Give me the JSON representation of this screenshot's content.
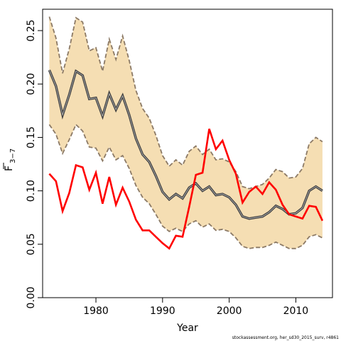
{
  "chart_data": {
    "type": "line",
    "xlabel": "Year",
    "ylabel": "F",
    "ylabel_subscript": "3−7",
    "xlim": [
      1972,
      2015.5
    ],
    "ylim": [
      0,
      0.27
    ],
    "x_ticks": [
      1980,
      1990,
      2000,
      2010
    ],
    "y_ticks": [
      0.0,
      0.05,
      0.1,
      0.15,
      0.2,
      0.25
    ],
    "y_tick_labels": [
      "0.00",
      "0.05",
      "0.10",
      "0.15",
      "0.20",
      "0.25"
    ],
    "x": [
      1973,
      1974,
      1975,
      1976,
      1977,
      1978,
      1979,
      1980,
      1981,
      1982,
      1983,
      1984,
      1985,
      1986,
      1987,
      1988,
      1989,
      1990,
      1991,
      1992,
      1993,
      1994,
      1995,
      1996,
      1997,
      1998,
      1999,
      2000,
      2001,
      2002,
      2003,
      2004,
      2005,
      2006,
      2007,
      2008,
      2009,
      2010,
      2011,
      2012,
      2013,
      2014
    ],
    "series": [
      {
        "role": "estimate",
        "color": "#404040",
        "values": [
          0.213,
          0.198,
          0.171,
          0.19,
          0.212,
          0.208,
          0.186,
          0.187,
          0.17,
          0.191,
          0.176,
          0.189,
          0.171,
          0.149,
          0.134,
          0.127,
          0.114,
          0.099,
          0.092,
          0.097,
          0.093,
          0.103,
          0.107,
          0.1,
          0.104,
          0.096,
          0.097,
          0.094,
          0.087,
          0.076,
          0.074,
          0.075,
          0.076,
          0.08,
          0.086,
          0.083,
          0.078,
          0.079,
          0.084,
          0.1,
          0.104,
          0.1
        ]
      },
      {
        "role": "lower_bound",
        "color": "#8c7a66",
        "values": [
          0.162,
          0.153,
          0.135,
          0.148,
          0.162,
          0.156,
          0.141,
          0.14,
          0.128,
          0.141,
          0.129,
          0.133,
          0.121,
          0.105,
          0.094,
          0.088,
          0.078,
          0.067,
          0.062,
          0.065,
          0.062,
          0.069,
          0.072,
          0.066,
          0.069,
          0.063,
          0.064,
          0.062,
          0.056,
          0.048,
          0.046,
          0.047,
          0.047,
          0.049,
          0.052,
          0.049,
          0.046,
          0.046,
          0.049,
          0.057,
          0.059,
          0.056
        ]
      },
      {
        "role": "upper_bound",
        "color": "#8c7a66",
        "values": [
          0.263,
          0.243,
          0.21,
          0.233,
          0.262,
          0.258,
          0.231,
          0.234,
          0.212,
          0.242,
          0.223,
          0.245,
          0.222,
          0.194,
          0.177,
          0.168,
          0.152,
          0.133,
          0.123,
          0.129,
          0.124,
          0.137,
          0.142,
          0.134,
          0.139,
          0.129,
          0.13,
          0.127,
          0.118,
          0.104,
          0.102,
          0.104,
          0.106,
          0.112,
          0.12,
          0.118,
          0.112,
          0.113,
          0.121,
          0.144,
          0.15,
          0.146
        ]
      },
      {
        "role": "comparison",
        "color": "#ff0000",
        "values": [
          0.116,
          0.109,
          0.081,
          0.098,
          0.124,
          0.122,
          0.101,
          0.117,
          0.088,
          0.113,
          0.087,
          0.103,
          0.09,
          0.073,
          0.063,
          0.063,
          0.057,
          0.051,
          0.046,
          0.058,
          0.057,
          0.085,
          0.115,
          0.117,
          0.158,
          0.139,
          0.147,
          0.129,
          0.116,
          0.089,
          0.099,
          0.104,
          0.097,
          0.108,
          0.101,
          0.087,
          0.078,
          0.076,
          0.074,
          0.086,
          0.085,
          0.072
        ]
      }
    ],
    "band_fill": "#f5deb3",
    "grid": false,
    "credit": "stockassessment.org, her_sd30_2015_surv, r4861"
  }
}
